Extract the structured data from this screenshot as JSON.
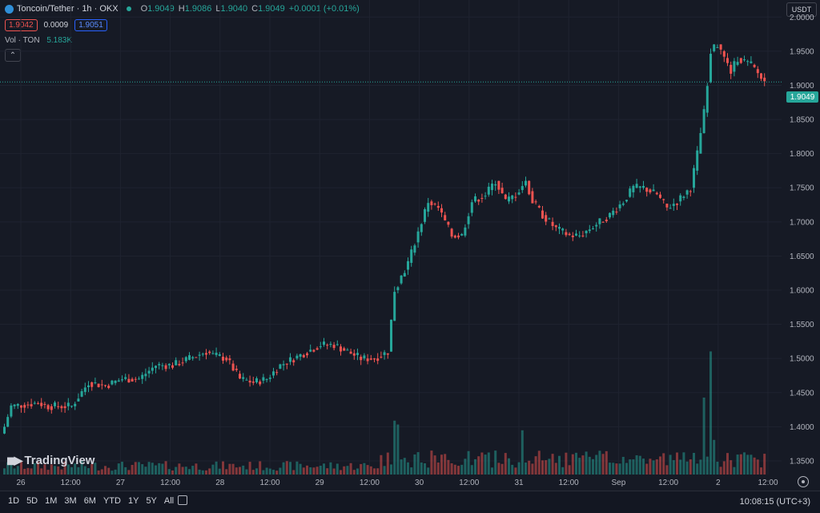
{
  "legend": {
    "symbol": "Toncoin/Tether · 1h · OKX",
    "open_label": "O",
    "open": "1.9049",
    "high_label": "H",
    "high": "1.9086",
    "low_label": "L",
    "low": "1.9040",
    "close_label": "C",
    "close": "1.9049",
    "change": "+0.0001 (+0.01%)",
    "bid": "1.9042",
    "spread": "0.0009",
    "ask": "1.9051",
    "vol_label": "Vol · TON",
    "vol_value": "5.183K"
  },
  "currency": "USDT",
  "last_price_label": "1.9049",
  "watermark": "TradingView",
  "colors": {
    "up": "#26a69a",
    "down": "#ef5350",
    "background": "#161a25"
  },
  "time_ticks": [
    "26",
    "12:00",
    "27",
    "12:00",
    "28",
    "12:00",
    "29",
    "12:00",
    "30",
    "12:00",
    "31",
    "12:00",
    "Sep",
    "12:00",
    "2",
    "12:00"
  ],
  "timeframes": [
    "1D",
    "5D",
    "1M",
    "3M",
    "6M",
    "YTD",
    "1Y",
    "5Y",
    "All"
  ],
  "clock": "10:08:15 (UTC+3)",
  "chart_data": {
    "type": "candlestick",
    "title": "Toncoin/Tether · 1h · OKX",
    "ylim": [
      1.33,
      2.025
    ],
    "y_ticks": [
      "2.0000",
      "1.9500",
      "1.9000",
      "1.8500",
      "1.8000",
      "1.7500",
      "1.7000",
      "1.6500",
      "1.6000",
      "1.5500",
      "1.5000",
      "1.4500",
      "1.4000",
      "1.3500"
    ],
    "last_price": 1.9049,
    "grid": true,
    "anchors": [
      [
        0,
        1.4
      ],
      [
        2,
        1.43
      ],
      [
        10,
        1.435
      ],
      [
        13,
        1.43
      ],
      [
        20,
        1.43
      ],
      [
        25,
        1.465
      ],
      [
        30,
        1.46
      ],
      [
        35,
        1.47
      ],
      [
        40,
        1.47
      ],
      [
        45,
        1.49
      ],
      [
        50,
        1.49
      ],
      [
        55,
        1.5
      ],
      [
        60,
        1.51
      ],
      [
        62,
        1.505
      ],
      [
        66,
        1.5
      ],
      [
        70,
        1.47
      ],
      [
        74,
        1.465
      ],
      [
        78,
        1.47
      ],
      [
        82,
        1.49
      ],
      [
        86,
        1.5
      ],
      [
        90,
        1.51
      ],
      [
        94,
        1.52
      ],
      [
        98,
        1.52
      ],
      [
        102,
        1.51
      ],
      [
        106,
        1.5
      ],
      [
        110,
        1.5
      ],
      [
        114,
        1.51
      ],
      [
        116,
        1.6
      ],
      [
        120,
        1.64
      ],
      [
        124,
        1.7
      ],
      [
        126,
        1.73
      ],
      [
        129,
        1.72
      ],
      [
        133,
        1.68
      ],
      [
        136,
        1.68
      ],
      [
        139,
        1.73
      ],
      [
        143,
        1.74
      ],
      [
        146,
        1.76
      ],
      [
        149,
        1.73
      ],
      [
        152,
        1.74
      ],
      [
        155,
        1.76
      ],
      [
        157,
        1.73
      ],
      [
        160,
        1.71
      ],
      [
        164,
        1.69
      ],
      [
        168,
        1.68
      ],
      [
        171,
        1.68
      ],
      [
        174,
        1.69
      ],
      [
        177,
        1.7
      ],
      [
        180,
        1.71
      ],
      [
        184,
        1.73
      ],
      [
        187,
        1.75
      ],
      [
        190,
        1.75
      ],
      [
        194,
        1.74
      ],
      [
        197,
        1.72
      ],
      [
        200,
        1.73
      ],
      [
        204,
        1.75
      ],
      [
        206,
        1.8
      ],
      [
        208,
        1.86
      ],
      [
        210,
        1.95
      ],
      [
        212,
        1.96
      ],
      [
        214,
        1.94
      ],
      [
        216,
        1.92
      ],
      [
        218,
        1.94
      ],
      [
        222,
        1.93
      ],
      [
        226,
        1.905
      ]
    ],
    "volume_spikes": [
      [
        116,
        0.28
      ],
      [
        117,
        0.26
      ],
      [
        154,
        0.23
      ],
      [
        208,
        0.4
      ],
      [
        210,
        0.64
      ],
      [
        211,
        0.18
      ]
    ]
  }
}
